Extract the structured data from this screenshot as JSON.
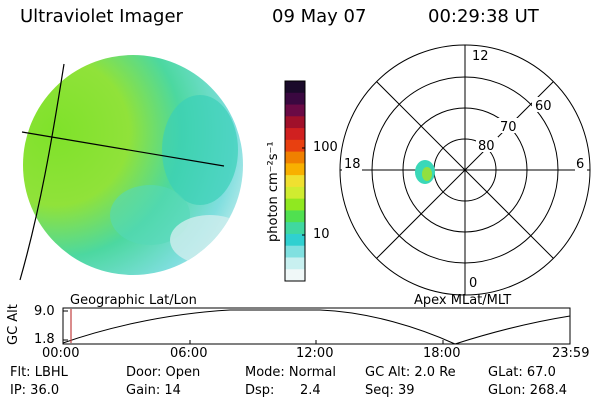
{
  "header": {
    "instrument": "Ultraviolet Imager",
    "date": "09 May 07",
    "time": "00:29:38 UT"
  },
  "colorbar": {
    "label": "photon cm⁻²s⁻¹",
    "ticks": [
      "100",
      "10"
    ],
    "colors": [
      "#1a0a2a",
      "#3a0840",
      "#6a0a45",
      "#a0102a",
      "#d02020",
      "#e84010",
      "#f08000",
      "#f8b000",
      "#f0e030",
      "#d0ec30",
      "#90e820",
      "#50e050",
      "#40d8a0",
      "#30d0d0",
      "#80e0e0",
      "#c8f0f0",
      "#f0f8f8"
    ]
  },
  "polar": {
    "mlt_labels": [
      "12",
      "18",
      "6",
      "0"
    ],
    "lat_labels": [
      "80",
      "70",
      "60"
    ]
  },
  "labels": {
    "geo": "Geographic Lat/Lon",
    "apex": "Apex MLat/MLT"
  },
  "timeline": {
    "ylabel": "GC Alt",
    "yticks": [
      "9.0",
      "1.8"
    ],
    "xticks": [
      "00:00",
      "06:00",
      "12:00",
      "18:00",
      "23:59"
    ],
    "current_time": "00:29:38"
  },
  "info": {
    "filter": "Flt: LBHL",
    "ip": "IP: 36.0",
    "door": "Door: Open",
    "gain": "Gain: 14",
    "mode": "Mode: Normal",
    "dsp_label": "Dsp:",
    "dsp_value": "2.4",
    "gc_alt": "GC Alt: 2.0 Re",
    "seq": "Seq: 39",
    "glat": "GLat:  67.0",
    "glon": "GLon: 268.4"
  }
}
